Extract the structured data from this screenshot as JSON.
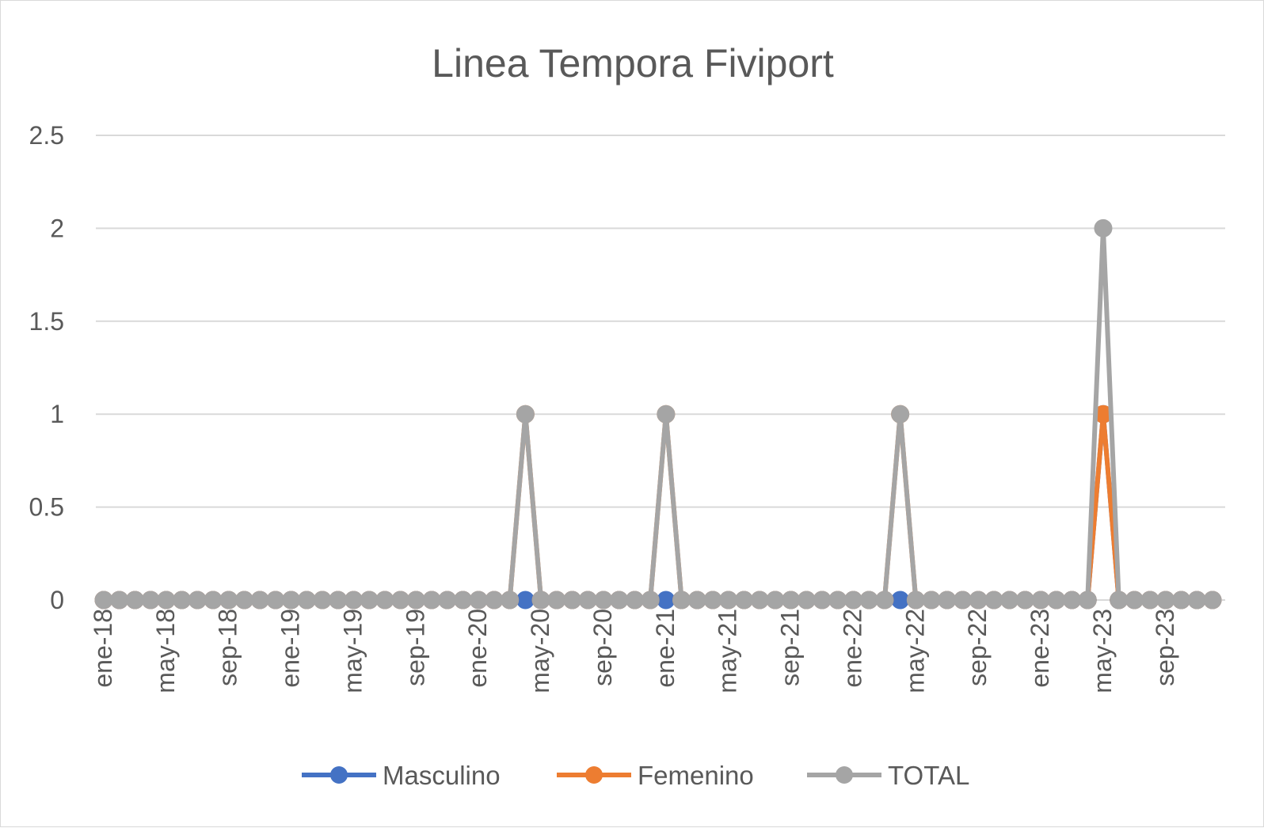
{
  "chart_data": {
    "type": "line",
    "title": "Linea Tempora Fiviport",
    "xlabel": "",
    "ylabel": "",
    "ylim": [
      0,
      2.5
    ],
    "yticks": [
      "0",
      "0.5",
      "1",
      "1.5",
      "2",
      "2.5"
    ],
    "grid": "horizontal",
    "legend_position": "bottom",
    "x": [
      "ene-18",
      "feb-18",
      "mar-18",
      "abr-18",
      "may-18",
      "jun-18",
      "jul-18",
      "ago-18",
      "sep-18",
      "oct-18",
      "nov-18",
      "dic-18",
      "ene-19",
      "feb-19",
      "mar-19",
      "abr-19",
      "may-19",
      "jun-19",
      "jul-19",
      "ago-19",
      "sep-19",
      "oct-19",
      "nov-19",
      "dic-19",
      "ene-20",
      "feb-20",
      "mar-20",
      "abr-20",
      "may-20",
      "jun-20",
      "jul-20",
      "ago-20",
      "sep-20",
      "oct-20",
      "nov-20",
      "dic-20",
      "ene-21",
      "feb-21",
      "mar-21",
      "abr-21",
      "may-21",
      "jun-21",
      "jul-21",
      "ago-21",
      "sep-21",
      "oct-21",
      "nov-21",
      "dic-21",
      "ene-22",
      "feb-22",
      "mar-22",
      "abr-22",
      "may-22",
      "jun-22",
      "jul-22",
      "ago-22",
      "sep-22",
      "oct-22",
      "nov-22",
      "dic-22",
      "ene-23",
      "feb-23",
      "mar-23",
      "abr-23",
      "may-23",
      "jun-23",
      "jul-23",
      "ago-23",
      "sep-23",
      "oct-23",
      "nov-23",
      "dic-23"
    ],
    "x_tick_labels": [
      "ene-18",
      "may-18",
      "sep-18",
      "ene-19",
      "may-19",
      "sep-19",
      "ene-20",
      "may-20",
      "sep-20",
      "ene-21",
      "may-21",
      "sep-21",
      "ene-22",
      "may-22",
      "sep-22",
      "ene-23",
      "may-23",
      "sep-23"
    ],
    "series": [
      {
        "name": "Masculino",
        "color": "#4472c4",
        "values": [
          0,
          0,
          0,
          0,
          0,
          0,
          0,
          0,
          0,
          0,
          0,
          0,
          0,
          0,
          0,
          0,
          0,
          0,
          0,
          0,
          0,
          0,
          0,
          0,
          0,
          0,
          0,
          0,
          0,
          0,
          0,
          0,
          0,
          0,
          0,
          0,
          0,
          0,
          0,
          0,
          0,
          0,
          0,
          0,
          0,
          0,
          0,
          0,
          0,
          0,
          0,
          0,
          0,
          0,
          0,
          0,
          0,
          0,
          0,
          0,
          0,
          0,
          0,
          0,
          1,
          0,
          0,
          0,
          0,
          0,
          0,
          0
        ]
      },
      {
        "name": "Femenino",
        "color": "#ed7d31",
        "values": [
          0,
          0,
          0,
          0,
          0,
          0,
          0,
          0,
          0,
          0,
          0,
          0,
          0,
          0,
          0,
          0,
          0,
          0,
          0,
          0,
          0,
          0,
          0,
          0,
          0,
          0,
          0,
          1,
          0,
          0,
          0,
          0,
          0,
          0,
          0,
          0,
          1,
          0,
          0,
          0,
          0,
          0,
          0,
          0,
          0,
          0,
          0,
          0,
          0,
          0,
          0,
          1,
          0,
          0,
          0,
          0,
          0,
          0,
          0,
          0,
          0,
          0,
          0,
          0,
          1,
          0,
          0,
          0,
          0,
          0,
          0,
          0
        ]
      },
      {
        "name": "TOTAL",
        "color": "#a5a5a5",
        "values": [
          0,
          0,
          0,
          0,
          0,
          0,
          0,
          0,
          0,
          0,
          0,
          0,
          0,
          0,
          0,
          0,
          0,
          0,
          0,
          0,
          0,
          0,
          0,
          0,
          0,
          0,
          0,
          1,
          0,
          0,
          0,
          0,
          0,
          0,
          0,
          0,
          1,
          0,
          0,
          0,
          0,
          0,
          0,
          0,
          0,
          0,
          0,
          0,
          0,
          0,
          0,
          1,
          0,
          0,
          0,
          0,
          0,
          0,
          0,
          0,
          0,
          0,
          0,
          0,
          2,
          0,
          0,
          0,
          0,
          0,
          0,
          0
        ]
      }
    ]
  }
}
